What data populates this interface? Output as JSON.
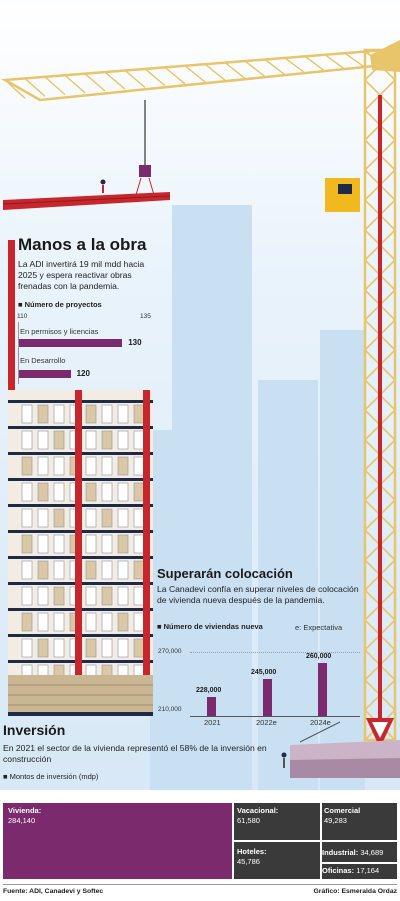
{
  "colors": {
    "accent": "#7b2a6d",
    "crane": "#e8c46a",
    "red": "#c8262d",
    "navy": "#1f2a44",
    "sky": "#d7e8f6"
  },
  "manos": {
    "title": "Manos a la obra",
    "text": "La ADI invertirá 19 mil mdd hacia 2025 y espera reactivar obras frenadas con la pandemia.",
    "legend": "Número de proyectos",
    "axis_min": "110",
    "axis_max": "135",
    "bars": [
      {
        "label": "En permisos y licencias",
        "value": "130"
      },
      {
        "label": "En Desarrollo",
        "value": "120"
      }
    ]
  },
  "colocacion": {
    "title": "Superarán colocación",
    "text": "La Canadevi confía en superar niveles de colocación de vivienda nueva después de la pandemia.",
    "legend": "Número de viviendas nueva",
    "note": "e: Expectativa",
    "ticks": [
      "270,000",
      "210,000"
    ],
    "years": [
      "2021",
      "2022e",
      "2024e"
    ],
    "values": [
      "228,000",
      "245,000",
      "260,000"
    ]
  },
  "inversion": {
    "title": "Inversión",
    "text": "En 2021 el sector de la vivienda representó el 58% de la inversión en construcción",
    "legend": "Montos de inversión (mdp)",
    "cells": [
      {
        "name": "Vivienda:",
        "value": "284,140"
      },
      {
        "name": "Vacacional:",
        "value": "61,580"
      },
      {
        "name": "Comercial",
        "value": "49,283"
      },
      {
        "name": "Hoteles:",
        "value": "45,786"
      },
      {
        "name": "Industrial:",
        "value": "34,689"
      },
      {
        "name": "Oficinas:",
        "value": "17,164"
      }
    ]
  },
  "chart_data": [
    {
      "type": "bar",
      "title": "Manos a la obra",
      "legend": "Número de proyectos",
      "categories": [
        "En permisos y licencias",
        "En Desarrollo"
      ],
      "values": [
        130,
        120
      ],
      "xlim": [
        110,
        135
      ]
    },
    {
      "type": "bar",
      "title": "Superarán colocación",
      "legend": "Número de viviendas nueva",
      "categories": [
        "2021",
        "2022e",
        "2024e"
      ],
      "values": [
        228000,
        245000,
        260000
      ],
      "ylim": [
        210000,
        270000
      ]
    },
    {
      "type": "heatmap",
      "title": "Inversión",
      "legend": "Montos de inversión (mdp)",
      "categories": [
        "Vivienda",
        "Vacacional",
        "Comercial",
        "Hoteles",
        "Industrial",
        "Oficinas"
      ],
      "values": [
        284140,
        61580,
        49283,
        45786,
        34689,
        17164
      ]
    }
  ],
  "footer": {
    "source": "Fuente: ADI, Canadevi y Softec",
    "credit": "Gráfico: Esmeralda Ordaz"
  }
}
